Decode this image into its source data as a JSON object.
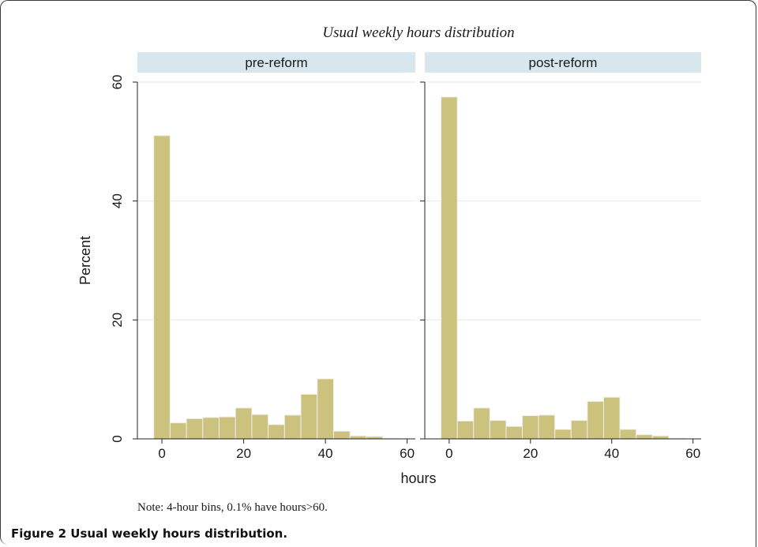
{
  "figure_caption": {
    "label": "Figure 2",
    "text": "Usual weekly hours distribution."
  },
  "chart_data": {
    "type": "bar",
    "title": "Usual weekly hours distribution",
    "xlabel": "hours",
    "ylabel": "Percent",
    "note": "Note: 4-hour bins, 0.1% have hours>60.",
    "bin_width": 4,
    "xlim": [
      -6,
      62
    ],
    "ylim": [
      0,
      60
    ],
    "xticks": [
      "0",
      "20",
      "40",
      "60"
    ],
    "yticks": [
      "0",
      "20",
      "40",
      "60"
    ],
    "grid": true,
    "bar_color": "#cbc27d",
    "bar_edge": "#eeeeee",
    "strip_color": "#d8e6ee",
    "bin_starts": [
      -2,
      2,
      6,
      10,
      14,
      18,
      22,
      26,
      30,
      34,
      38,
      42,
      46,
      50,
      54
    ],
    "panels": [
      {
        "name": "pre-reform",
        "values": [
          51.0,
          2.7,
          3.4,
          3.6,
          3.7,
          5.2,
          4.1,
          2.4,
          4.0,
          7.5,
          10.1,
          1.3,
          0.5,
          0.4,
          0.1
        ]
      },
      {
        "name": "post-reform",
        "values": [
          57.5,
          3.0,
          5.2,
          3.1,
          2.1,
          3.9,
          4.0,
          1.6,
          3.1,
          6.3,
          7.0,
          1.6,
          0.7,
          0.5,
          0.1
        ]
      }
    ]
  }
}
